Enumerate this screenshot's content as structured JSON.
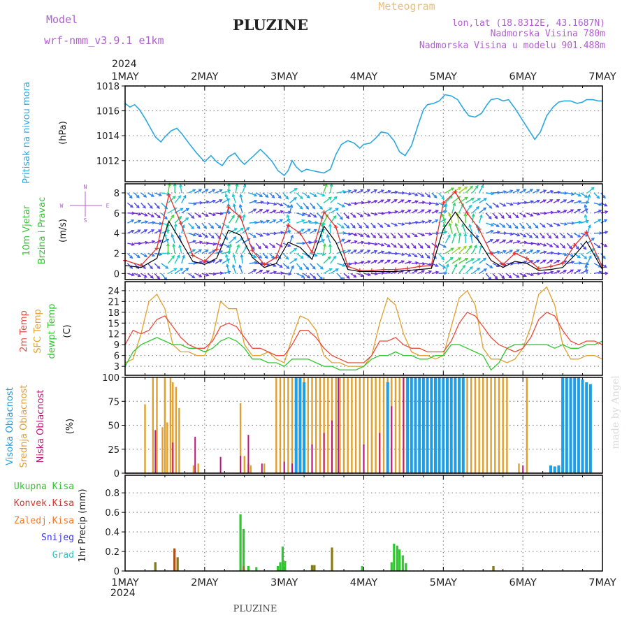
{
  "header": {
    "model_label": "Model",
    "model_value": "wrf-nmm_v3.9.1 e1km",
    "title": "PLUZINE",
    "meteogram": "Meteogram",
    "lonlat": "lon,lat (18.8312E, 43.1687N)",
    "elevation": "Nadmorska Visina 780m",
    "model_elevation": "Nadmorska Visina u modelu 901.488m",
    "footer_title": "PLUZINE",
    "credit": "made by Angel",
    "year_top": "2024",
    "year_bottom": "2024"
  },
  "colors": {
    "pressure": "#2ba8e0",
    "temp2m": "#e84a3c",
    "sfc_temp": "#e0a030",
    "dewpoint": "#2ec82e",
    "high_cloud": "#1e9ee6",
    "mid_cloud": "#e0a030",
    "low_cloud": "#c0187a",
    "total_precip": "#2ec82e",
    "conv_precip": "#e03030",
    "frozen_precip": "#f07828",
    "snow": "#3838e0",
    "hail": "#28c8c8",
    "wind_speed": "#000000",
    "wind_gust": "#e03030",
    "olive_precip": "#8c7a10"
  },
  "chart_data": [
    {
      "type": "line",
      "panel": "pressure",
      "xlabels": [
        "1MAY",
        "2MAY",
        "3MAY",
        "4MAY",
        "5MAY",
        "6MAY",
        "7MAY"
      ],
      "ylabel_left": "Pritisak na nivou mora",
      "ylabel_unit": "(hPa)",
      "ylim": [
        1010.3,
        1018.0
      ],
      "yticks": [
        1012,
        1014,
        1016,
        1018
      ],
      "series": [
        {
          "x": [
            0,
            0.06,
            0.12,
            0.18,
            0.25,
            0.32,
            0.38,
            0.45,
            0.5,
            0.58,
            0.65,
            0.72,
            0.8,
            0.9,
            1.0,
            1.08,
            1.15,
            1.22,
            1.3,
            1.38,
            1.45,
            1.5,
            1.55,
            1.62,
            1.7,
            1.78,
            1.85,
            1.92,
            2.0,
            2.05,
            2.1,
            2.15,
            2.22,
            2.28,
            2.35,
            2.42,
            2.5,
            2.58,
            2.65,
            2.72,
            2.8,
            2.88,
            2.95,
            3.0,
            3.08,
            3.15,
            3.22,
            3.3,
            3.38,
            3.45,
            3.52,
            3.6,
            3.68,
            3.75,
            3.8,
            3.88,
            3.95,
            4.02,
            4.1,
            4.18,
            4.25,
            4.32,
            4.4,
            4.48,
            4.55,
            4.6,
            4.68,
            4.75,
            4.82,
            4.9,
            5.0,
            5.08,
            5.15,
            5.22,
            5.3,
            5.38,
            5.45,
            5.52,
            5.6,
            5.68,
            5.75,
            5.8,
            5.88,
            5.95,
            6.0
          ],
          "values": [
            1016.6,
            1016.3,
            1016.5,
            1016.1,
            1015.4,
            1014.6,
            1013.9,
            1013.5,
            1013.9,
            1014.4,
            1014.6,
            1014.1,
            1013.4,
            1012.6,
            1011.9,
            1012.4,
            1011.9,
            1011.6,
            1012.3,
            1012.6,
            1012.0,
            1011.7,
            1012.0,
            1012.4,
            1012.9,
            1012.4,
            1011.9,
            1011.2,
            1010.8,
            1011.2,
            1012.0,
            1011.5,
            1011.1,
            1011.3,
            1011.2,
            1011.1,
            1011.0,
            1011.3,
            1012.5,
            1013.3,
            1013.6,
            1013.4,
            1013.0,
            1013.3,
            1013.4,
            1013.8,
            1014.3,
            1014.2,
            1013.6,
            1012.7,
            1012.4,
            1013.2,
            1014.8,
            1016.1,
            1016.5,
            1016.6,
            1016.8,
            1017.3,
            1017.2,
            1016.9,
            1016.2,
            1015.6,
            1015.5,
            1015.8,
            1016.5,
            1016.9,
            1017.0,
            1016.8,
            1016.9,
            1016.2,
            1015.2,
            1014.4,
            1013.7,
            1014.3,
            1015.6,
            1016.3,
            1016.7,
            1016.8,
            1016.8,
            1016.6,
            1016.7,
            1016.9,
            1016.9,
            1016.8,
            1016.8
          ]
        }
      ]
    },
    {
      "type": "line",
      "panel": "wind",
      "ylabel_left": [
        "10m Vjetar",
        "Brzina i Pravac"
      ],
      "ylabel_unit": "(m/s)",
      "compass": {
        "n": "N",
        "s": "S",
        "w": "W",
        "e": "E"
      },
      "ylim": [
        -0.6,
        8.9
      ],
      "yticks": [
        0,
        2,
        4,
        6,
        8
      ],
      "series": [
        {
          "name": "speed",
          "x": [
            0,
            0.2,
            0.4,
            0.55,
            0.7,
            0.85,
            1.0,
            1.15,
            1.3,
            1.45,
            1.6,
            1.75,
            1.9,
            2.05,
            2.2,
            2.35,
            2.5,
            2.65,
            2.8,
            2.95,
            3.1,
            3.25,
            3.4,
            3.55,
            3.7,
            3.85,
            4.0,
            4.15,
            4.3,
            4.45,
            4.6,
            4.75,
            4.9,
            5.05,
            5.2,
            5.35,
            5.5,
            5.65,
            5.8,
            6.0
          ],
          "values": [
            0.8,
            0.6,
            1.5,
            5.2,
            3.2,
            1.2,
            0.9,
            1.5,
            4.3,
            3.8,
            1.6,
            0.6,
            1.0,
            3.1,
            2.6,
            1.4,
            4.7,
            3.1,
            0.4,
            0.2,
            0.2,
            0.2,
            0.2,
            0.3,
            0.4,
            0.5,
            4.4,
            6.1,
            4.5,
            3.2,
            1.3,
            0.6,
            1.2,
            1.0,
            0.3,
            0.4,
            0.6,
            1.8,
            3.2,
            0.4
          ]
        },
        {
          "name": "gust",
          "x": [
            0,
            0.2,
            0.4,
            0.55,
            0.7,
            0.85,
            1.0,
            1.15,
            1.3,
            1.45,
            1.6,
            1.75,
            1.9,
            2.05,
            2.2,
            2.35,
            2.5,
            2.65,
            2.8,
            2.95,
            3.1,
            3.25,
            3.4,
            3.55,
            3.7,
            3.85,
            4.0,
            4.15,
            4.3,
            4.45,
            4.6,
            4.75,
            4.9,
            5.05,
            5.2,
            5.35,
            5.5,
            5.65,
            5.8,
            6.0
          ],
          "values": [
            1.3,
            0.8,
            2.5,
            7.8,
            5.0,
            1.8,
            1.2,
            2.4,
            6.6,
            5.6,
            2.3,
            0.9,
            1.6,
            4.8,
            4.0,
            2.1,
            6.1,
            4.6,
            0.7,
            0.3,
            0.3,
            0.4,
            0.4,
            0.5,
            0.7,
            0.8,
            7.0,
            8.1,
            6.0,
            4.4,
            2.0,
            0.9,
            2.0,
            1.5,
            0.5,
            0.7,
            1.0,
            2.8,
            4.1,
            0.6
          ]
        }
      ]
    },
    {
      "type": "line",
      "panel": "temperature",
      "ylabel_left": [
        "2m Temp",
        "SFC Temp",
        "dewpt Temp"
      ],
      "ylabel_unit": "(C)",
      "ylim": [
        0.5,
        26.5
      ],
      "yticks": [
        3,
        6,
        9,
        12,
        15,
        18,
        21,
        24
      ],
      "x": [
        0,
        0.1,
        0.2,
        0.3,
        0.4,
        0.5,
        0.6,
        0.7,
        0.8,
        0.9,
        1.0,
        1.1,
        1.2,
        1.3,
        1.4,
        1.5,
        1.6,
        1.7,
        1.8,
        1.9,
        2.0,
        2.1,
        2.2,
        2.3,
        2.4,
        2.5,
        2.6,
        2.7,
        2.8,
        2.9,
        3.0,
        3.1,
        3.2,
        3.3,
        3.4,
        3.5,
        3.6,
        3.7,
        3.8,
        3.9,
        4.0,
        4.1,
        4.2,
        4.3,
        4.4,
        4.5,
        4.6,
        4.7,
        4.8,
        4.9,
        5.0,
        5.1,
        5.2,
        5.3,
        5.4,
        5.5,
        5.6,
        5.7,
        5.8,
        5.9,
        6.0
      ],
      "series": [
        {
          "name": "2m",
          "values": [
            9,
            13,
            12,
            13,
            16,
            17,
            14,
            11,
            9,
            8,
            8,
            10,
            14,
            15,
            14,
            11,
            8,
            8,
            7,
            6,
            6,
            9,
            13,
            13,
            11,
            8,
            6,
            5,
            4,
            4,
            4,
            6,
            10,
            10,
            11,
            9,
            8,
            8,
            7,
            7,
            7,
            10,
            15,
            18,
            17,
            14,
            11,
            9,
            8,
            7,
            8,
            11,
            16,
            18,
            17,
            13,
            10,
            9,
            10,
            10,
            9
          ]
        },
        {
          "name": "sfc",
          "values": [
            4,
            5,
            12,
            21,
            23,
            19,
            9,
            7,
            7,
            6,
            6,
            11,
            21,
            19,
            19,
            9,
            6,
            6,
            7,
            5,
            4,
            11,
            17,
            16,
            13,
            6,
            4,
            4,
            3,
            3,
            3,
            6,
            15,
            22,
            20,
            12,
            7,
            6,
            6,
            5,
            6,
            14,
            22,
            24,
            20,
            8,
            5,
            5,
            4,
            5,
            8,
            14,
            23,
            25,
            20,
            9,
            5,
            5,
            6,
            6,
            5
          ]
        },
        {
          "name": "dew",
          "values": [
            3,
            7,
            9,
            10,
            11,
            10,
            9,
            9,
            8,
            8,
            7,
            8,
            10,
            11,
            10,
            8,
            5,
            5,
            4,
            4,
            3,
            5,
            5,
            5,
            4,
            3,
            3,
            2,
            2,
            2,
            3,
            5,
            6,
            6,
            7,
            6,
            6,
            5,
            5,
            6,
            6,
            9,
            9,
            8,
            7,
            6,
            2,
            4,
            8,
            9,
            9,
            9,
            9,
            9,
            8,
            9,
            8,
            8,
            9,
            9,
            10
          ]
        }
      ]
    },
    {
      "type": "bar",
      "panel": "cloud",
      "ylabel_left": [
        "Visoka Oblacnost",
        "Srednja Oblacnost",
        "Niska Oblacnost"
      ],
      "ylabel_unit": "(%)",
      "ylim": [
        0,
        100
      ],
      "yticks": [
        0,
        25,
        50,
        75,
        100
      ],
      "series": [
        {
          "name": "mid",
          "x": [
            0.25,
            0.35,
            0.4,
            0.47,
            0.5,
            0.53,
            0.57,
            0.6,
            0.64,
            0.68,
            0.86,
            0.92,
            1.45,
            1.5,
            1.55,
            1.58,
            1.75,
            1.9,
            1.95,
            2.0,
            2.05,
            2.1,
            2.15,
            2.2,
            2.25,
            2.3,
            2.35,
            2.4,
            2.45,
            2.5,
            2.55,
            2.6,
            2.65,
            2.7,
            2.75,
            2.8,
            2.85,
            2.9,
            2.95,
            3.0,
            3.05,
            3.1,
            3.15,
            3.2,
            3.25,
            3.3,
            3.35,
            3.4,
            3.45,
            3.5,
            3.55,
            3.6,
            3.65,
            3.7,
            3.75,
            3.8,
            3.85,
            3.9,
            3.95,
            4.0,
            4.05,
            4.1,
            4.15,
            4.2,
            4.25,
            4.3,
            4.35,
            4.4,
            4.45,
            4.5,
            4.55,
            4.6,
            4.65,
            4.7,
            4.75,
            4.8,
            4.95,
            5.05
          ],
          "values": [
            72,
            100,
            100,
            48,
            100,
            53,
            100,
            95,
            90,
            68,
            8,
            10,
            73,
            18,
            10,
            8,
            10,
            100,
            100,
            100,
            100,
            100,
            100,
            100,
            100,
            100,
            100,
            100,
            100,
            100,
            100,
            100,
            100,
            100,
            100,
            100,
            100,
            100,
            100,
            100,
            100,
            100,
            100,
            100,
            100,
            100,
            100,
            100,
            100,
            100,
            100,
            100,
            100,
            100,
            100,
            100,
            100,
            100,
            100,
            100,
            100,
            100,
            100,
            100,
            100,
            100,
            100,
            100,
            100,
            100,
            100,
            100,
            100,
            100,
            100,
            100,
            10,
            100
          ]
        },
        {
          "name": "low",
          "x": [
            0.38,
            0.6,
            0.88,
            1.2,
            1.45,
            1.55,
            1.72,
            2.0,
            2.1,
            2.35,
            2.5,
            2.6,
            2.68,
            3.0,
            3.2,
            3.35,
            3.5,
            3.6,
            3.75,
            3.8,
            3.9,
            4.0,
            5.0,
            5.5,
            5.75
          ],
          "values": [
            45,
            32,
            38,
            17,
            18,
            40,
            10,
            12,
            10,
            30,
            42,
            55,
            100,
            30,
            42,
            70,
            100,
            100,
            100,
            100,
            100,
            100,
            8,
            14,
            10
          ]
        },
        {
          "name": "high",
          "x": [
            2.15,
            2.2,
            2.25,
            3.3,
            3.55,
            3.6,
            3.65,
            3.7,
            3.75,
            3.8,
            3.85,
            3.9,
            3.95,
            4.0,
            4.05,
            4.1,
            4.15,
            4.2,
            4.25,
            5.35,
            5.4,
            5.45,
            5.5,
            5.55,
            5.6,
            5.65,
            5.7,
            5.75,
            5.8,
            5.85
          ],
          "values": [
            100,
            100,
            95,
            95,
            100,
            100,
            100,
            100,
            100,
            100,
            100,
            100,
            100,
            100,
            100,
            100,
            100,
            100,
            100,
            8,
            7,
            8,
            100,
            100,
            100,
            100,
            100,
            98,
            95,
            93
          ]
        }
      ]
    },
    {
      "type": "bar",
      "panel": "precip",
      "legend": [
        "Ukupna Kisa",
        "Konvek.Kisa",
        "Zaledj.Kisa",
        "Snijeg",
        "Grad"
      ],
      "ylabel_left": "1hr Precip (mm)",
      "ylim": [
        0,
        0.98
      ],
      "yticks": [
        0,
        0.2,
        0.4,
        0.6,
        0.8
      ],
      "series": [
        {
          "name": "total",
          "x": [
            0.38,
            0.62,
            0.66,
            1.45,
            1.49,
            1.55,
            1.65,
            1.92,
            1.95,
            1.98,
            2.01,
            2.35,
            2.38,
            2.98,
            3.35,
            3.38,
            3.42,
            3.45,
            3.49,
            3.53,
            4.63
          ],
          "values": [
            0.09,
            0.23,
            0.14,
            0.58,
            0.43,
            0.05,
            0.04,
            0.05,
            0.09,
            0.25,
            0.1,
            0.06,
            0.06,
            0.05,
            0.09,
            0.28,
            0.26,
            0.22,
            0.16,
            0.08,
            0.05
          ]
        },
        {
          "name": "olive",
          "x": [
            0.38,
            0.62,
            0.66,
            1.49,
            2.35,
            2.38,
            2.6,
            4.63
          ],
          "values": [
            0.09,
            0.23,
            0.14,
            0.05,
            0.06,
            0.06,
            0.24,
            0.05
          ]
        },
        {
          "name": "conv",
          "x": [
            0.62
          ],
          "values": [
            0.23
          ]
        }
      ]
    }
  ]
}
